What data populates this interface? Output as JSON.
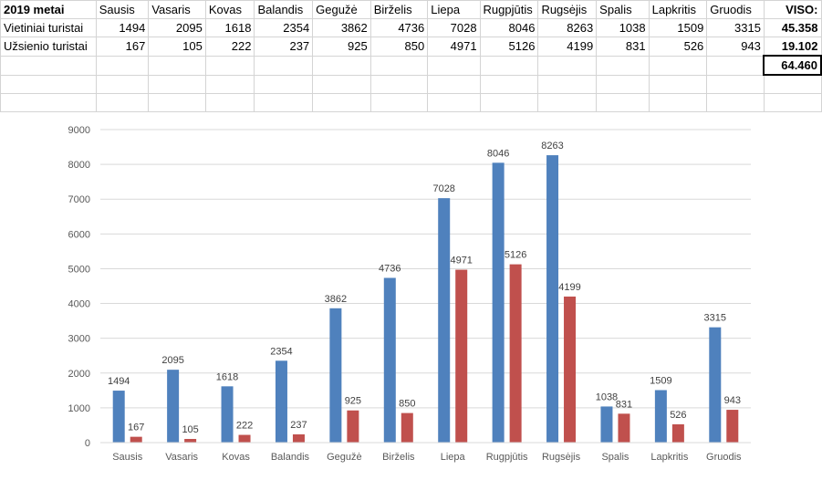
{
  "sheet": {
    "header": {
      "year_label": "2019 metai",
      "months": [
        "Sausis",
        "Vasaris",
        "Kovas",
        "Balandis",
        "Gegužė",
        "Birželis",
        "Liepa",
        "Rugpjūtis",
        "Rugsėjis",
        "Spalis",
        "Lapkritis",
        "Gruodis"
      ],
      "total_label": "VISO:"
    },
    "rows": [
      {
        "label": "Vietiniai turistai",
        "values": [
          "1494",
          "2095",
          "1618",
          "2354",
          "3862",
          "4736",
          "7028",
          "8046",
          "8263",
          "1038",
          "1509",
          "3315"
        ],
        "total": "45.358"
      },
      {
        "label": "Užsienio turistai",
        "values": [
          "167",
          "105",
          "222",
          "237",
          "925",
          "850",
          "4971",
          "5126",
          "4199",
          "831",
          "526",
          "943"
        ],
        "total": "19.102"
      }
    ],
    "grand_total": "64.460"
  },
  "chart_data": {
    "type": "bar",
    "title": "",
    "xlabel": "",
    "ylabel": "",
    "categories": [
      "Sausis",
      "Vasaris",
      "Kovas",
      "Balandis",
      "Gegužė",
      "Birželis",
      "Liepa",
      "Rugpjūtis",
      "Rugsėjis",
      "Spalis",
      "Lapkritis",
      "Gruodis"
    ],
    "series": [
      {
        "values": [
          1494,
          2095,
          1618,
          2354,
          3862,
          4736,
          7028,
          8046,
          8263,
          1038,
          1509,
          3315
        ],
        "color": "#4f81bd"
      },
      {
        "values": [
          167,
          105,
          222,
          237,
          925,
          850,
          4971,
          5126,
          4199,
          831,
          526,
          943
        ],
        "color": "#c0504d"
      }
    ],
    "ylim": [
      0,
      9000
    ],
    "yticks": [
      0,
      1000,
      2000,
      3000,
      4000,
      5000,
      6000,
      7000,
      8000,
      9000
    ],
    "grid": true,
    "legend": "none",
    "data_labels": true
  }
}
